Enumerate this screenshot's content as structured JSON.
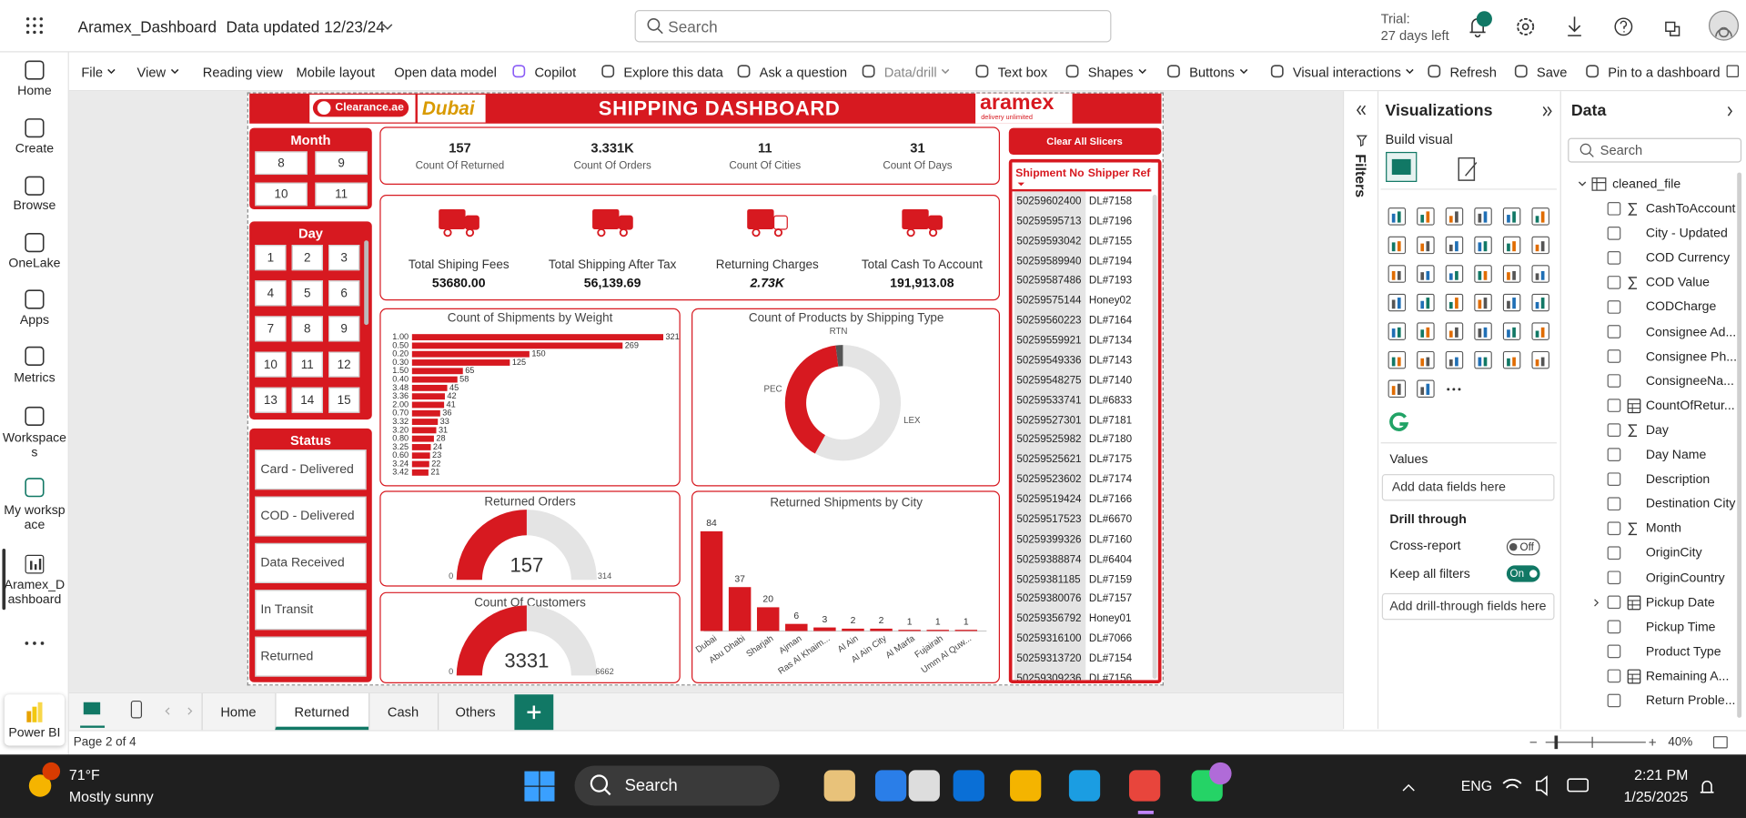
{
  "app": {
    "title": "Aramex_Dashboard",
    "updated": "Data updated 12/23/24",
    "search": "Search",
    "trial": "Trial:",
    "trial_days": "27 days left",
    "notifications": "5"
  },
  "nav": [
    "Home",
    "Create",
    "Browse",
    "OneLake",
    "Apps",
    "Metrics",
    "Workspaces",
    "My workspace",
    "Aramex_Dashboard",
    "Power BI"
  ],
  "toolbar": [
    {
      "label": "File",
      "menu": true
    },
    {
      "label": "View",
      "menu": true
    },
    {
      "label": "Reading view"
    },
    {
      "label": "Mobile layout"
    },
    {
      "label": "Open data model"
    },
    {
      "label": "Copilot"
    },
    {
      "label": "Explore this data"
    },
    {
      "label": "Ask a question"
    },
    {
      "label": "Data/drill",
      "menu": true,
      "disabled": true
    },
    {
      "label": "Text box"
    },
    {
      "label": "Shapes",
      "menu": true
    },
    {
      "label": "Buttons",
      "menu": true
    },
    {
      "label": "Visual interactions",
      "menu": true
    },
    {
      "label": "Refresh"
    },
    {
      "label": "Save"
    },
    {
      "label": "Pin to a dashboard"
    }
  ],
  "report": {
    "logo_left": "Clearance.ae",
    "logo_mid": "Dubai",
    "logo_right": "aramex",
    "logo_tag": "delivery unlimited",
    "title": "SHIPPING DASHBOARD",
    "clear": "Clear All Slicers",
    "month": {
      "title": "Month",
      "items": [
        "8",
        "9",
        "10",
        "11"
      ]
    },
    "day": {
      "title": "Day",
      "items": [
        "1",
        "2",
        "3",
        "4",
        "5",
        "6",
        "7",
        "8",
        "9",
        "10",
        "11",
        "12",
        "13",
        "14",
        "15"
      ]
    },
    "status": {
      "title": "Status",
      "items": [
        "Card - Delivered",
        "COD - Delivered",
        "Data Received",
        "In Transit",
        "Returned"
      ]
    },
    "kpis": [
      {
        "value": "157",
        "label": "Count Of Returned"
      },
      {
        "value": "3.331K",
        "label": "Count Of Orders"
      },
      {
        "value": "11",
        "label": "Count Of Cities"
      },
      {
        "value": "31",
        "label": "Count Of Days"
      }
    ],
    "totals": [
      {
        "label": "Total Shiping Fees",
        "value": "53680.00"
      },
      {
        "label": "Total Shipping After Tax",
        "value": "56,139.69"
      },
      {
        "label": "Returning Charges",
        "value": "2.73K"
      },
      {
        "label": "Total Cash To Account",
        "value": "191,913.08"
      }
    ],
    "weight_chart": {
      "type": "bar",
      "orientation": "horizontal",
      "title": "Count of Shipments by Weight",
      "categories": [
        "1.00",
        "0.50",
        "0.20",
        "0.30",
        "1.50",
        "0.40",
        "3.48",
        "3.36",
        "2.00",
        "0.70",
        "3.32",
        "3.20",
        "0.80",
        "3.25",
        "0.60",
        "3.24",
        "3.42"
      ],
      "values": [
        321,
        269,
        150,
        125,
        65,
        58,
        45,
        42,
        41,
        36,
        33,
        31,
        28,
        24,
        23,
        22,
        21
      ],
      "color": "#d71920",
      "xlim": [
        0,
        330
      ]
    },
    "type_chart": {
      "type": "pie",
      "title": "Count of Products by Shipping Type",
      "categories": [
        "LEX",
        "PEC",
        "RTN"
      ],
      "values": [
        58,
        40,
        2
      ],
      "colors": [
        "#e4e4e4",
        "#d71920",
        "#555555"
      ]
    },
    "returned_gauge": {
      "type": "gauge",
      "title": "Returned Orders",
      "value": 157,
      "min": 0,
      "max": 314,
      "color": "#d71920"
    },
    "customers_gauge": {
      "type": "gauge",
      "title": "Count Of Customers",
      "value": 3331,
      "min": 0,
      "max": 6662,
      "color": "#d71920"
    },
    "city_chart": {
      "type": "bar",
      "title": "Returned Shipments by City",
      "categories": [
        "Dubai",
        "Abu Dhabi",
        "Sharjah",
        "Ajman",
        "Ras Al Khaim...",
        "Al Ain",
        "Al Ain City",
        "Al Marfa",
        "Fujairah",
        "Umm Al Quw..."
      ],
      "values": [
        84,
        37,
        20,
        6,
        3,
        2,
        2,
        1,
        1,
        1
      ],
      "color": "#d71920",
      "ylim": [
        0,
        90
      ]
    },
    "table": {
      "columns": [
        "Shipment No",
        "Shipper Ref"
      ],
      "rows": [
        [
          "50259602400",
          "DL#7158"
        ],
        [
          "50259595713",
          "DL#7196"
        ],
        [
          "50259593042",
          "DL#7155"
        ],
        [
          "50259589940",
          "DL#7194"
        ],
        [
          "50259587486",
          "DL#7193"
        ],
        [
          "50259575144",
          "Honey02"
        ],
        [
          "50259560223",
          "DL#7164"
        ],
        [
          "50259559921",
          "DL#7134"
        ],
        [
          "50259549336",
          "DL#7143"
        ],
        [
          "50259548275",
          "DL#7140"
        ],
        [
          "50259533741",
          "DL#6833"
        ],
        [
          "50259527301",
          "DL#7181"
        ],
        [
          "50259525982",
          "DL#7180"
        ],
        [
          "50259525621",
          "DL#7175"
        ],
        [
          "50259523602",
          "DL#7174"
        ],
        [
          "50259519424",
          "DL#7166"
        ],
        [
          "50259517523",
          "DL#6670"
        ],
        [
          "50259399326",
          "DL#7160"
        ],
        [
          "50259388874",
          "DL#6404"
        ],
        [
          "50259381185",
          "DL#7159"
        ],
        [
          "50259380076",
          "DL#7157"
        ],
        [
          "50259356792",
          "Honey01"
        ],
        [
          "50259316100",
          "DL#7066"
        ],
        [
          "50259313720",
          "DL#7154"
        ],
        [
          "50259309236",
          "DL#7156"
        ]
      ]
    }
  },
  "filters": "Filters",
  "visualizations": {
    "title": "Visualizations",
    "build": "Build visual",
    "values": "Values",
    "values_well": "Add data fields here",
    "drill": "Drill through",
    "cross": "Cross-report",
    "cross_state": "Off",
    "keep": "Keep all filters",
    "keep_state": "On",
    "drill_well": "Add drill-through fields here"
  },
  "data_pane": {
    "title": "Data",
    "search": "Search",
    "table": "cleaned_file",
    "fields": [
      {
        "name": "CashToAccount",
        "kind": "sum"
      },
      {
        "name": "City - Updated"
      },
      {
        "name": "COD Currency"
      },
      {
        "name": "COD Value",
        "kind": "sum"
      },
      {
        "name": "CODCharge"
      },
      {
        "name": "Consignee Ad..."
      },
      {
        "name": "Consignee Ph..."
      },
      {
        "name": "ConsigneeNa..."
      },
      {
        "name": "CountOfRetur...",
        "kind": "calc"
      },
      {
        "name": "Day",
        "kind": "sum"
      },
      {
        "name": "Day Name"
      },
      {
        "name": "Description"
      },
      {
        "name": "Destination City"
      },
      {
        "name": "Month",
        "kind": "sum"
      },
      {
        "name": "OriginCity"
      },
      {
        "name": "OriginCountry"
      },
      {
        "name": "Pickup Date",
        "kind": "table"
      },
      {
        "name": "Pickup Time"
      },
      {
        "name": "Product Type"
      },
      {
        "name": "Remaining A...",
        "kind": "calc"
      },
      {
        "name": "Return Proble..."
      }
    ]
  },
  "tabs": [
    "Home",
    "Returned",
    "Cash",
    "Others"
  ],
  "active_tab": 1,
  "status": {
    "page": "Page 2 of 4",
    "zoom": "40%"
  },
  "taskbar": {
    "weather_badge": "1",
    "temp": "71°F",
    "weather": "Mostly sunny",
    "search": "Search",
    "badge": "50",
    "lang": "ENG",
    "time": "2:21 PM",
    "date": "1/25/2025"
  }
}
